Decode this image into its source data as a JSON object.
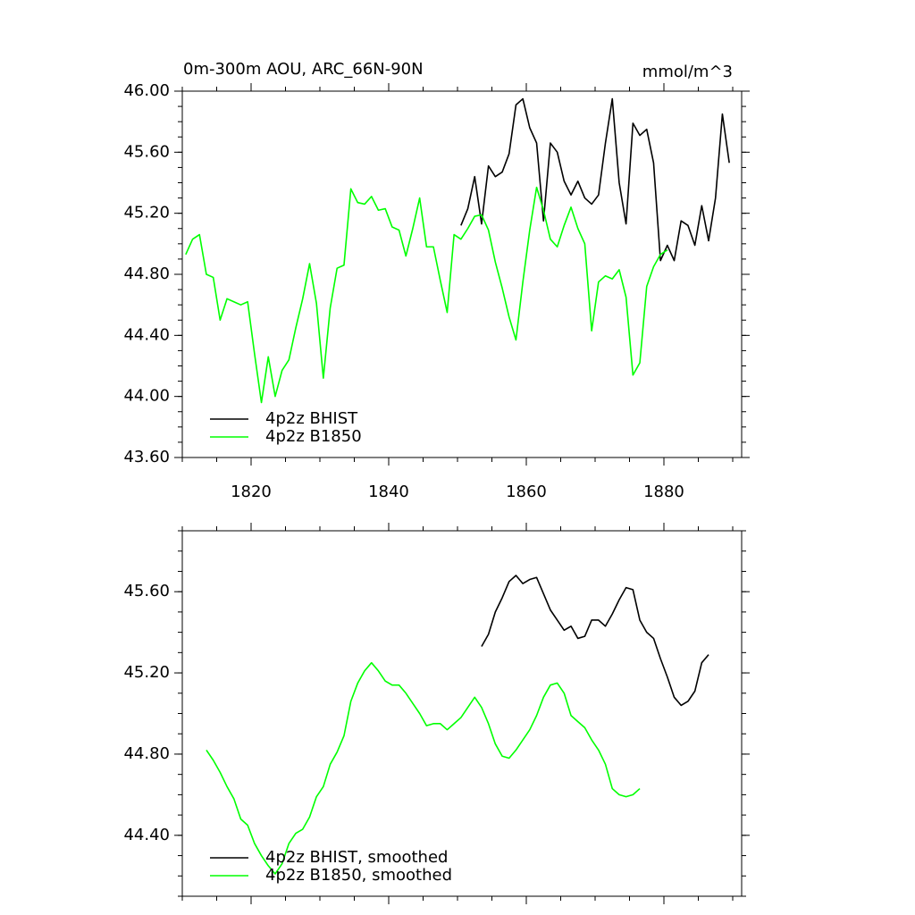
{
  "chart_data": [
    {
      "type": "line",
      "title": "0m-300m AOU, ARC_66N-90N",
      "units": "mmol/m^3",
      "xlim": [
        1810,
        1891.3
      ],
      "xticks": [
        1820,
        1840,
        1860,
        1880
      ],
      "xtick_labels": true,
      "ylim": [
        43.6,
        46.0
      ],
      "yticks": [
        {
          "value": 43.6,
          "label": "43.60"
        },
        {
          "value": 44.0,
          "label": "44.00"
        },
        {
          "value": 44.4,
          "label": "44.40"
        },
        {
          "value": 44.8,
          "label": "44.80"
        },
        {
          "value": 45.2,
          "label": "45.20"
        },
        {
          "value": 45.6,
          "label": "45.60"
        },
        {
          "value": 46.0,
          "label": "46.00"
        }
      ],
      "legend": "lower left",
      "series": [
        {
          "name": "4p2z BHIST",
          "color": "#000000",
          "x": [
            1850.5,
            1851.5,
            1852.5,
            1853.5,
            1854.5,
            1855.5,
            1856.5,
            1857.5,
            1858.5,
            1859.5,
            1860.5,
            1861.5,
            1862.5,
            1863.5,
            1864.5,
            1865.5,
            1866.5,
            1867.5,
            1868.5,
            1869.5,
            1870.5,
            1871.5,
            1872.5,
            1873.5,
            1874.5,
            1875.5,
            1876.5,
            1877.5,
            1878.5,
            1879.5,
            1880.5,
            1881.5,
            1882.5,
            1883.5,
            1884.5,
            1885.5,
            1886.5,
            1887.5,
            1888.5,
            1889.5
          ],
          "values": [
            45.12,
            45.23,
            45.44,
            45.13,
            45.51,
            45.44,
            45.47,
            45.59,
            45.91,
            45.95,
            45.76,
            45.66,
            45.15,
            45.66,
            45.6,
            45.41,
            45.32,
            45.41,
            45.3,
            45.26,
            45.32,
            45.66,
            45.95,
            45.4,
            45.13,
            45.79,
            45.71,
            45.75,
            45.53,
            44.89,
            44.99,
            44.89,
            45.15,
            45.12,
            44.99,
            45.25,
            45.02,
            45.3,
            45.85,
            45.53
          ]
        },
        {
          "name": "4p2z B1850",
          "color": "#00ff00",
          "x": [
            1810.5,
            1811.5,
            1812.5,
            1813.5,
            1814.5,
            1815.5,
            1816.5,
            1817.5,
            1818.5,
            1819.5,
            1820.5,
            1821.5,
            1822.5,
            1823.5,
            1824.5,
            1825.5,
            1826.5,
            1827.5,
            1828.5,
            1829.5,
            1830.5,
            1831.5,
            1832.5,
            1833.5,
            1834.5,
            1835.5,
            1836.5,
            1837.5,
            1838.5,
            1839.5,
            1840.5,
            1841.5,
            1842.5,
            1843.5,
            1844.5,
            1845.5,
            1846.5,
            1847.5,
            1848.5,
            1849.5,
            1850.5,
            1851.5,
            1852.5,
            1853.5,
            1854.5,
            1855.5,
            1856.5,
            1857.5,
            1858.5,
            1859.5,
            1860.5,
            1861.5,
            1862.5,
            1863.5,
            1864.5,
            1865.5,
            1866.5,
            1867.5,
            1868.5,
            1869.5,
            1870.5,
            1871.5,
            1872.5,
            1873.5,
            1874.5,
            1875.5,
            1876.5,
            1877.5,
            1878.5,
            1879.5,
            1880.5
          ],
          "values": [
            44.93,
            45.03,
            45.06,
            44.8,
            44.78,
            44.5,
            44.64,
            44.62,
            44.6,
            44.62,
            44.28,
            43.96,
            44.26,
            44.0,
            44.17,
            44.24,
            44.45,
            44.64,
            44.87,
            44.61,
            44.12,
            44.58,
            44.84,
            44.86,
            45.36,
            45.27,
            45.26,
            45.31,
            45.22,
            45.23,
            45.11,
            45.09,
            44.92,
            45.1,
            45.3,
            44.98,
            44.98,
            44.76,
            44.55,
            45.06,
            45.03,
            45.1,
            45.18,
            45.19,
            45.09,
            44.88,
            44.71,
            44.52,
            44.37,
            44.75,
            45.09,
            45.37,
            45.22,
            45.03,
            44.98,
            45.12,
            45.24,
            45.1,
            45.0,
            44.43,
            44.75,
            44.79,
            44.77,
            44.83,
            44.65,
            44.14,
            44.22,
            44.72,
            44.85,
            44.93,
            44.96
          ]
        }
      ]
    },
    {
      "type": "line",
      "xlim": [
        1810,
        1891.3
      ],
      "xticks": [
        1820,
        1840,
        1860,
        1880
      ],
      "xtick_labels": false,
      "ylim": [
        44.1,
        45.9
      ],
      "yticks": [
        {
          "value": 44.4,
          "label": "44.40"
        },
        {
          "value": 44.8,
          "label": "44.80"
        },
        {
          "value": 45.2,
          "label": "45.20"
        },
        {
          "value": 45.6,
          "label": "45.60"
        }
      ],
      "legend": "lower left",
      "series": [
        {
          "name": "4p2z BHIST, smoothed",
          "color": "#000000",
          "x": [
            1853.5,
            1854.5,
            1855.5,
            1856.5,
            1857.5,
            1858.5,
            1859.5,
            1860.5,
            1861.5,
            1862.5,
            1863.5,
            1864.5,
            1865.5,
            1866.5,
            1867.5,
            1868.5,
            1869.5,
            1870.5,
            1871.5,
            1872.5,
            1873.5,
            1874.5,
            1875.5,
            1876.5,
            1877.5,
            1878.5,
            1879.5,
            1880.5,
            1881.5,
            1882.5,
            1883.5,
            1884.5,
            1885.5,
            1886.5
          ],
          "values": [
            45.33,
            45.39,
            45.5,
            45.57,
            45.65,
            45.68,
            45.64,
            45.66,
            45.67,
            45.59,
            45.51,
            45.46,
            45.41,
            45.43,
            45.37,
            45.38,
            45.46,
            45.46,
            45.43,
            45.49,
            45.56,
            45.62,
            45.61,
            45.46,
            45.4,
            45.37,
            45.27,
            45.18,
            45.08,
            45.04,
            45.06,
            45.11,
            45.25,
            45.29
          ]
        },
        {
          "name": "4p2z B1850, smoothed",
          "color": "#00ff00",
          "x": [
            1813.5,
            1814.5,
            1815.5,
            1816.5,
            1817.5,
            1818.5,
            1819.5,
            1820.5,
            1821.5,
            1822.5,
            1823.5,
            1824.5,
            1825.5,
            1826.5,
            1827.5,
            1828.5,
            1829.5,
            1830.5,
            1831.5,
            1832.5,
            1833.5,
            1834.5,
            1835.5,
            1836.5,
            1837.5,
            1838.5,
            1839.5,
            1840.5,
            1841.5,
            1842.5,
            1843.5,
            1844.5,
            1845.5,
            1846.5,
            1847.5,
            1848.5,
            1849.5,
            1850.5,
            1851.5,
            1852.5,
            1853.5,
            1854.5,
            1855.5,
            1856.5,
            1857.5,
            1858.5,
            1859.5,
            1860.5,
            1861.5,
            1862.5,
            1863.5,
            1864.5,
            1865.5,
            1866.5,
            1867.5,
            1868.5,
            1869.5,
            1870.5,
            1871.5,
            1872.5,
            1873.5,
            1874.5,
            1875.5,
            1876.5
          ],
          "values": [
            44.82,
            44.77,
            44.71,
            44.64,
            44.58,
            44.48,
            44.45,
            44.36,
            44.3,
            44.25,
            44.21,
            44.26,
            44.36,
            44.41,
            44.43,
            44.49,
            44.59,
            44.64,
            44.75,
            44.81,
            44.89,
            45.06,
            45.15,
            45.21,
            45.25,
            45.21,
            45.16,
            45.14,
            45.14,
            45.1,
            45.05,
            45.0,
            44.94,
            44.95,
            44.95,
            44.92,
            44.95,
            44.98,
            45.03,
            45.08,
            45.03,
            44.95,
            44.85,
            44.79,
            44.78,
            44.82,
            44.87,
            44.92,
            44.99,
            45.08,
            45.14,
            45.15,
            45.1,
            44.99,
            44.96,
            44.93,
            44.87,
            44.82,
            44.75,
            44.63,
            44.6,
            44.59,
            44.6,
            44.63
          ]
        }
      ]
    }
  ]
}
